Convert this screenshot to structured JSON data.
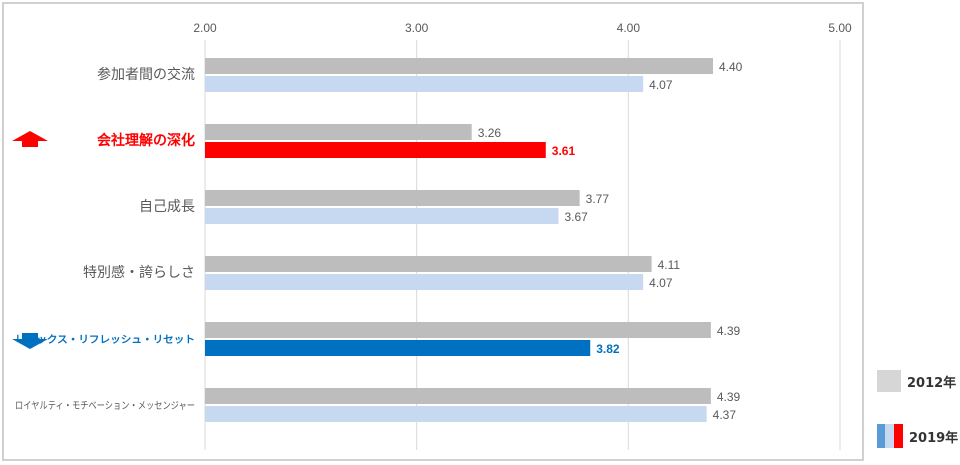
{
  "chart_data": {
    "type": "bar",
    "orientation": "horizontal",
    "xlim": [
      2.0,
      5.0
    ],
    "x_ticks": [
      "2.00",
      "3.00",
      "4.00",
      "5.00"
    ],
    "categories": [
      "参加者間の交流",
      "会社理解の深化",
      "自己成長",
      "特別感・誇らしさ",
      "リラックス・リフレッシュ・リセット",
      "ロイヤルティ・モチベーション・メッセンジャー"
    ],
    "series": [
      {
        "name": "2012年",
        "values": [
          4.4,
          3.26,
          3.77,
          4.11,
          4.39,
          4.39
        ],
        "labels": [
          "4.40",
          "3.26",
          "3.77",
          "4.11",
          "4.39",
          "4.39"
        ]
      },
      {
        "name": "2019年",
        "values": [
          4.07,
          3.61,
          3.67,
          4.07,
          3.82,
          4.37
        ],
        "labels": [
          "4.07",
          "3.61",
          "3.67",
          "4.07",
          "3.82",
          "4.37"
        ]
      }
    ],
    "highlights": [
      {
        "category_index": 1,
        "direction": "up",
        "color": "#ff0000"
      },
      {
        "category_index": 4,
        "direction": "down",
        "color": "#0070c0"
      }
    ],
    "colors": {
      "s2012": "#bdbdbd",
      "s2019": "#c6d9f1",
      "grid": "#d9d9d9",
      "up": "#ff0000",
      "down": "#0070c0"
    },
    "grid": true
  },
  "legend": {
    "item_2012": "2012年",
    "item_2019": "2019年",
    "swatch_2019_colors": [
      "#5b9bd5",
      "#c6d9f1",
      "#ff0000"
    ]
  }
}
